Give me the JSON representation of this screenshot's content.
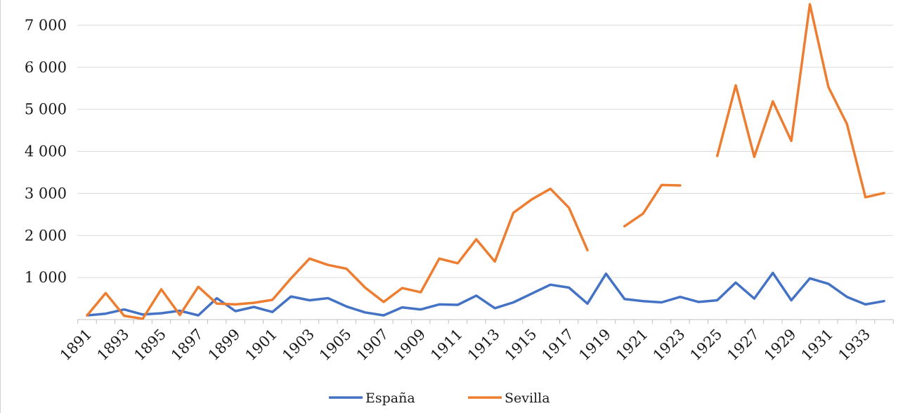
{
  "chart_data": {
    "type": "line",
    "title": "",
    "xlabel": "",
    "ylabel": "",
    "ylim": [
      0,
      7500
    ],
    "yticks": [
      1000,
      2000,
      3000,
      4000,
      5000,
      6000,
      7000
    ],
    "ytick_labels": [
      "1 000",
      "2 000",
      "3 000",
      "4 000",
      "5 000",
      "6 000",
      "7 000"
    ],
    "x": [
      1891,
      1892,
      1893,
      1894,
      1895,
      1896,
      1897,
      1898,
      1899,
      1900,
      1901,
      1902,
      1903,
      1904,
      1905,
      1906,
      1907,
      1908,
      1909,
      1910,
      1911,
      1912,
      1913,
      1914,
      1915,
      1916,
      1917,
      1918,
      1919,
      1920,
      1921,
      1922,
      1923,
      1924,
      1925,
      1926,
      1927,
      1928,
      1929,
      1930,
      1931,
      1932,
      1933,
      1934
    ],
    "xtick_labels": [
      "1891",
      "1893",
      "1895",
      "1897",
      "1899",
      "1901",
      "1903",
      "1905",
      "1907",
      "1909",
      "1911",
      "1913",
      "1915",
      "1917",
      "1919",
      "1921",
      "1923",
      "1925",
      "1927",
      "1929",
      "1931",
      "1933"
    ],
    "legend_position": "bottom",
    "grid": true,
    "series": [
      {
        "name": "España",
        "color": "#4472C4",
        "values": [
          100,
          140,
          240,
          120,
          150,
          210,
          100,
          510,
          200,
          300,
          180,
          550,
          460,
          510,
          310,
          170,
          100,
          290,
          240,
          360,
          350,
          570,
          270,
          410,
          620,
          830,
          760,
          380,
          1090,
          490,
          440,
          410,
          540,
          420,
          460,
          880,
          500,
          1110,
          460,
          980,
          850,
          540,
          360,
          440
        ]
      },
      {
        "name": "Sevilla",
        "color": "#ED7D31",
        "values": [
          100,
          630,
          90,
          20,
          720,
          110,
          780,
          380,
          360,
          400,
          470,
          980,
          1450,
          1300,
          1210,
          760,
          420,
          750,
          650,
          1450,
          1340,
          1910,
          1380,
          2540,
          2860,
          3110,
          2660,
          1650,
          null,
          2220,
          2520,
          3200,
          3190,
          null,
          3890,
          5570,
          3870,
          5190,
          4250,
          7500,
          5530,
          4650,
          2910,
          3010
        ]
      }
    ]
  }
}
